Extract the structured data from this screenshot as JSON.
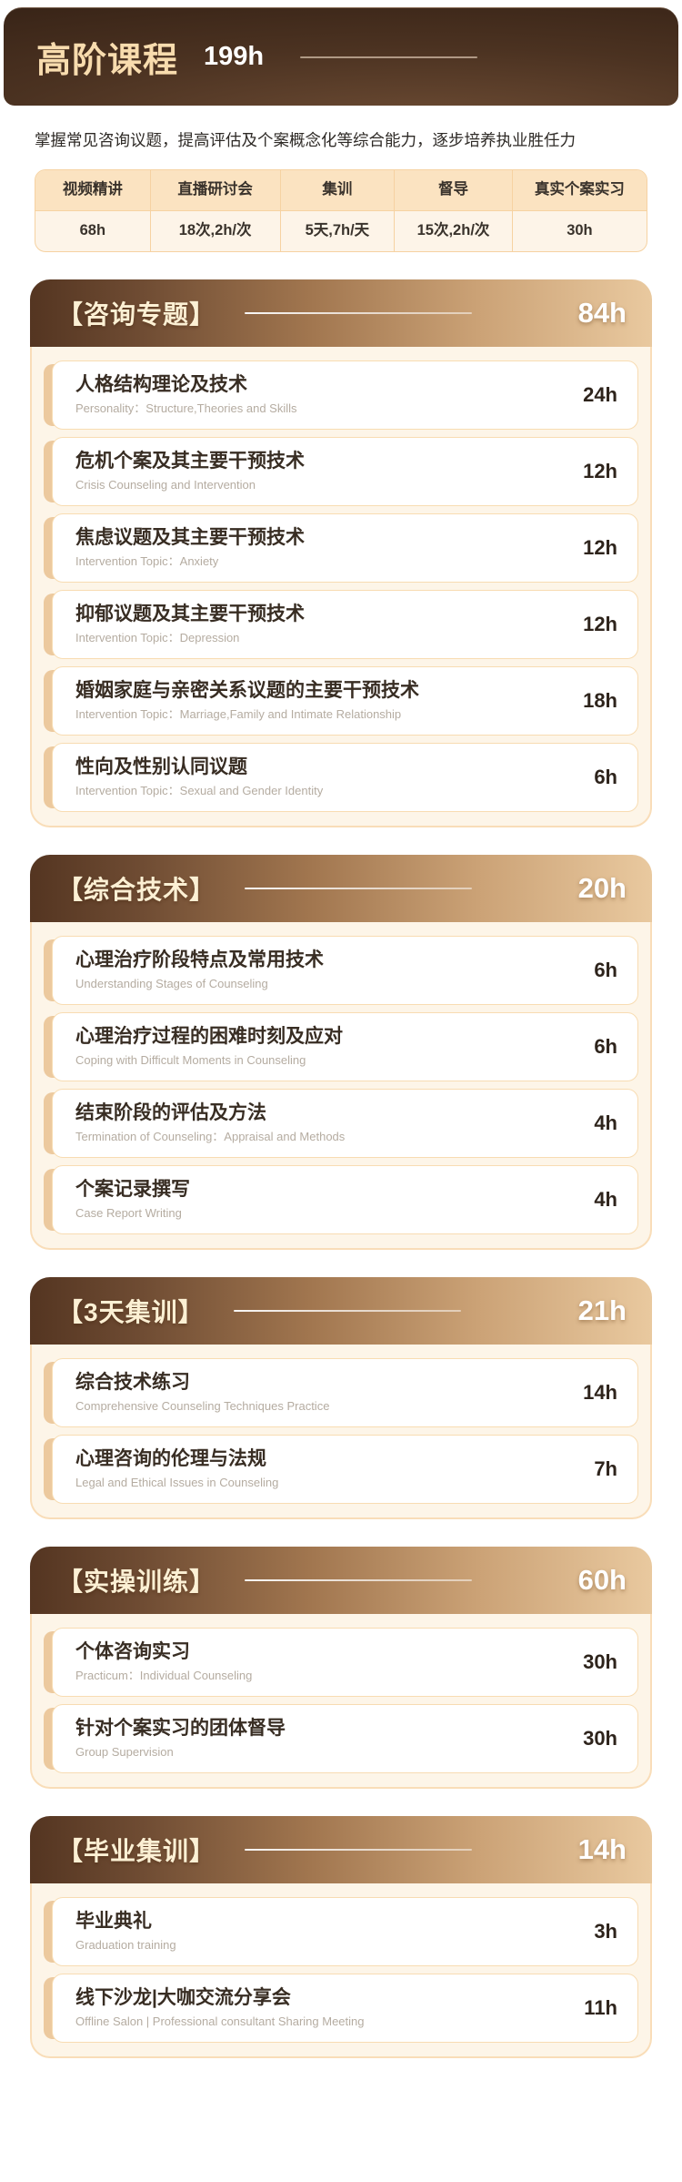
{
  "hero": {
    "title": "高阶课程",
    "total_hours": "199h"
  },
  "intro": "掌握常见咨询议题，提高评估及个案概念化等综合能力，逐步培养执业胜任力",
  "summary_table": {
    "columns": [
      {
        "label": "视频精讲",
        "value": "68h"
      },
      {
        "label": "直播研讨会",
        "value": "18次,2h/次"
      },
      {
        "label": "集训",
        "value": "5天,7h/天"
      },
      {
        "label": "督导",
        "value": "15次,2h/次"
      },
      {
        "label": "真实个案实习",
        "value": "30h"
      }
    ]
  },
  "sections": [
    {
      "title": "【咨询专题】",
      "hours": "84h",
      "items": [
        {
          "title_zh": "人格结构理论及技术",
          "subtitle_en": "Personality：Structure,Theories and Skills",
          "hours": "24h"
        },
        {
          "title_zh": "危机个案及其主要干预技术",
          "subtitle_en": "Crisis Counseling and Intervention",
          "hours": "12h"
        },
        {
          "title_zh": "焦虑议题及其主要干预技术",
          "subtitle_en": "Intervention Topic：Anxiety",
          "hours": "12h"
        },
        {
          "title_zh": "抑郁议题及其主要干预技术",
          "subtitle_en": "Intervention Topic：Depression",
          "hours": "12h"
        },
        {
          "title_zh": "婚姻家庭与亲密关系议题的主要干预技术",
          "subtitle_en": "Intervention Topic：Marriage,Family and Intimate Relationship",
          "hours": "18h"
        },
        {
          "title_zh": "性向及性别认同议题",
          "subtitle_en": "Intervention Topic：Sexual and Gender Identity",
          "hours": "6h"
        }
      ]
    },
    {
      "title": "【综合技术】",
      "hours": "20h",
      "items": [
        {
          "title_zh": "心理治疗阶段特点及常用技术",
          "subtitle_en": "Understanding Stages of Counseling",
          "hours": "6h"
        },
        {
          "title_zh": "心理治疗过程的困难时刻及应对",
          "subtitle_en": "Coping with Difficult Moments in Counseling",
          "hours": "6h"
        },
        {
          "title_zh": "结束阶段的评估及方法",
          "subtitle_en": "Termination of Counseling：Appraisal and Methods",
          "hours": "4h"
        },
        {
          "title_zh": "个案记录撰写",
          "subtitle_en": "Case Report Writing",
          "hours": "4h"
        }
      ]
    },
    {
      "title": "【3天集训】",
      "hours": "21h",
      "items": [
        {
          "title_zh": "综合技术练习",
          "subtitle_en": "Comprehensive Counseling Techniques Practice",
          "hours": "14h"
        },
        {
          "title_zh": "心理咨询的伦理与法规",
          "subtitle_en": "Legal and Ethical Issues in Counseling",
          "hours": "7h"
        }
      ]
    },
    {
      "title": "【实操训练】",
      "hours": "60h",
      "items": [
        {
          "title_zh": "个体咨询实习",
          "subtitle_en": "Practicum：Individual Counseling",
          "hours": "30h"
        },
        {
          "title_zh": "针对个案实习的团体督导",
          "subtitle_en": "Group Supervision",
          "hours": "30h"
        }
      ]
    },
    {
      "title": "【毕业集训】",
      "hours": "14h",
      "items": [
        {
          "title_zh": "毕业典礼",
          "subtitle_en": "Graduation training",
          "hours": "3h"
        },
        {
          "title_zh": "线下沙龙|大咖交流分享会",
          "subtitle_en": "Offline Salon | Professional consultant Sharing Meeting",
          "hours": "11h"
        }
      ]
    }
  ],
  "colors": {
    "hero_bg_dark": "#2b1a10",
    "hero_title": "#f8dcae",
    "section_gradient_start": "#543521",
    "section_gradient_end": "#e9c99f",
    "section_body_bg": "#fdf5e8",
    "table_header_bg": "#fbe3c1",
    "table_border": "#f6d2a2",
    "item_accent_bar": "#ecc99e",
    "item_border": "#f8dcb2",
    "text_dark": "#382d23",
    "text_sub": "#b5aca1"
  }
}
